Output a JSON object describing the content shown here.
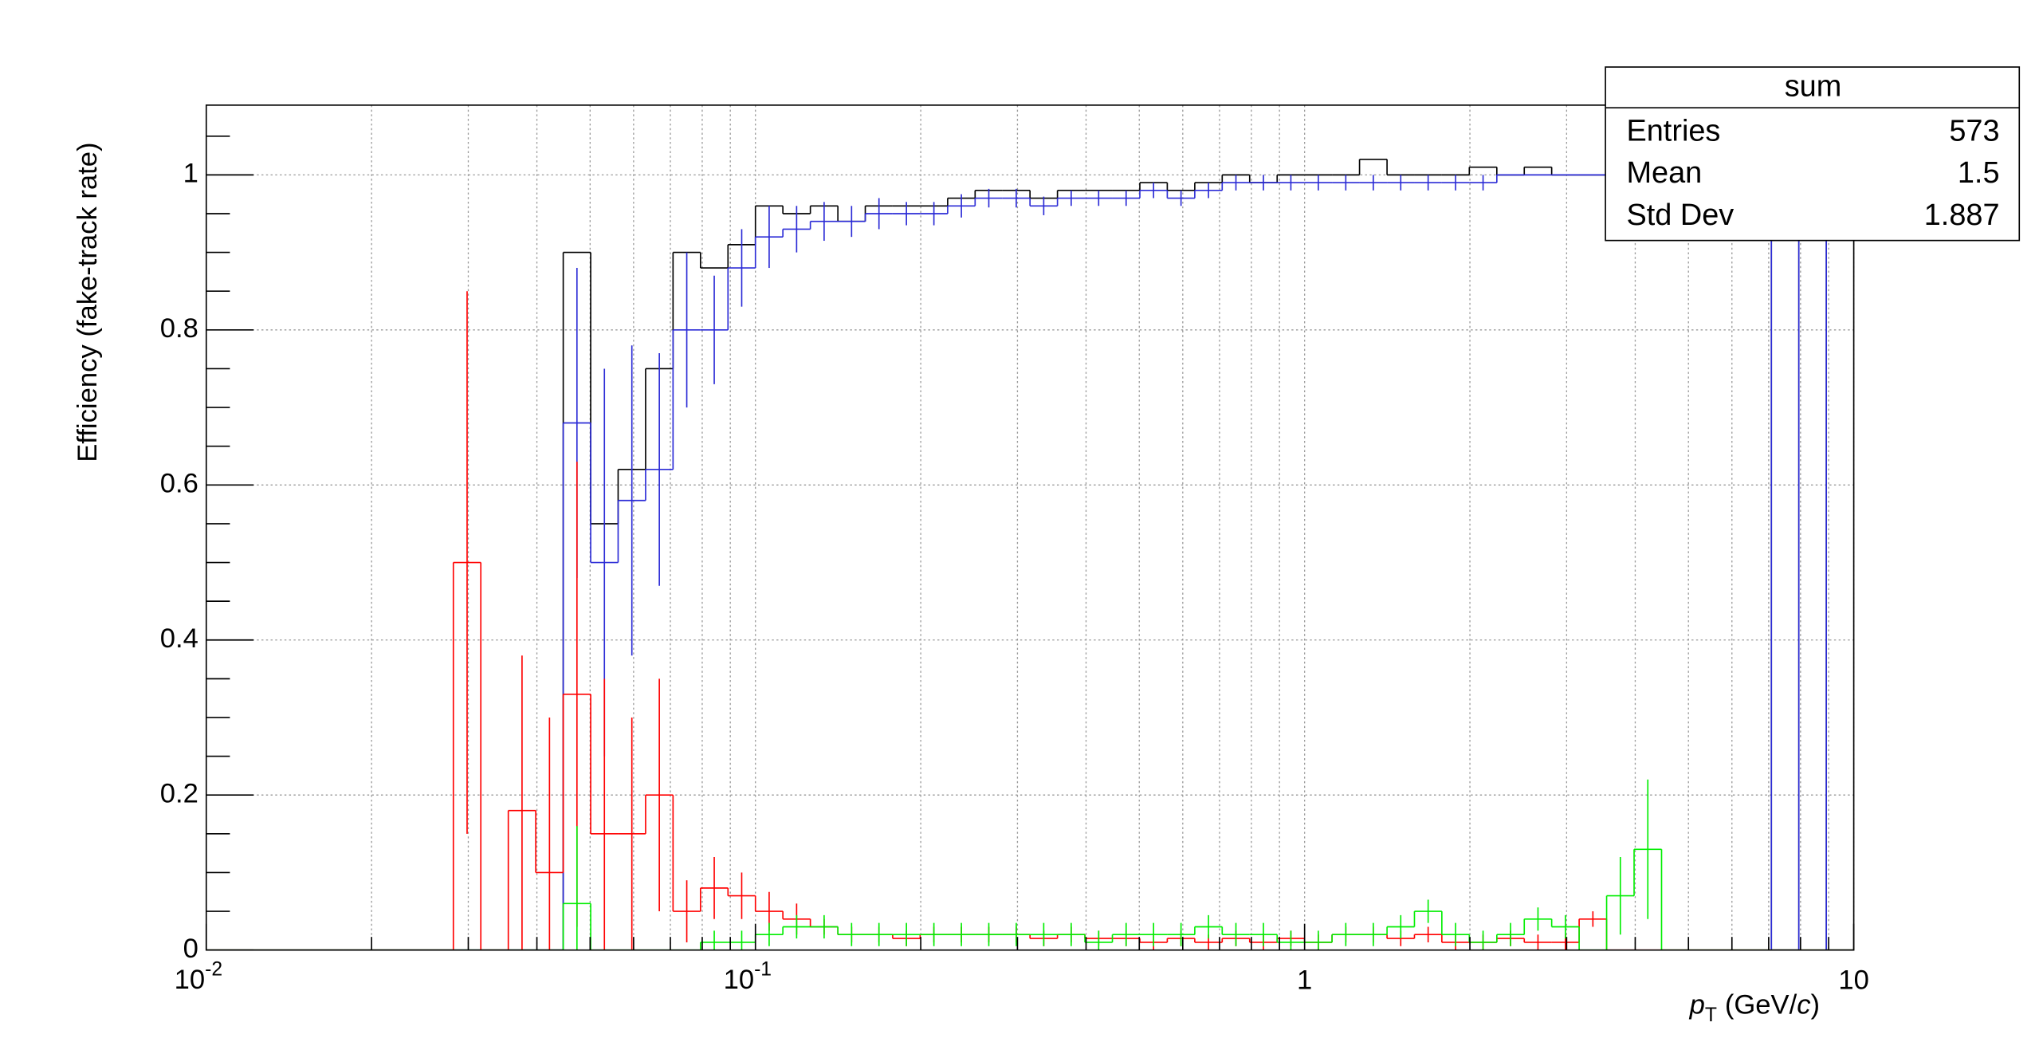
{
  "chart_data": {
    "type": "histogram",
    "ylabel": "Efficiency (fake-track rate)",
    "xlabel": {
      "symbol": "p",
      "sub": "T",
      "unit": "(GeV/",
      "unit_var": "c",
      "close": ")"
    },
    "log_x": true,
    "grid": true,
    "xlim": [
      0.01,
      10
    ],
    "ylim": [
      0,
      1.09
    ],
    "xticks": [
      {
        "value": 0.01,
        "label": "10",
        "sup": "-2"
      },
      {
        "value": 0.1,
        "label": "10",
        "sup": "-1"
      },
      1,
      10
    ],
    "xminorticks": [
      0.02,
      0.03,
      0.04,
      0.05,
      0.06,
      0.07,
      0.08,
      0.09,
      0.2,
      0.3,
      0.4,
      0.5,
      0.6,
      0.7,
      0.8,
      0.9,
      2,
      3,
      4,
      5,
      6,
      7,
      8,
      9
    ],
    "yticks": [
      0,
      0.2,
      0.4,
      0.6,
      0.8,
      1
    ],
    "yminorticks": [
      0.05,
      0.1,
      0.15,
      0.25,
      0.3,
      0.35,
      0.45,
      0.5,
      0.55,
      0.65,
      0.7,
      0.75,
      0.85,
      0.9,
      0.95,
      1.05
    ],
    "bins": [
      0.01,
      0.01122,
      0.01259,
      0.01413,
      0.01585,
      0.01778,
      0.01995,
      0.02239,
      0.02512,
      0.02818,
      0.03162,
      0.03548,
      0.03981,
      0.04467,
      0.05012,
      0.05623,
      0.0631,
      0.07079,
      0.07943,
      0.08913,
      0.1,
      0.1122,
      0.1259,
      0.1413,
      0.1585,
      0.1778,
      0.1995,
      0.2239,
      0.2512,
      0.2818,
      0.3162,
      0.3548,
      0.3981,
      0.4467,
      0.5012,
      0.5623,
      0.631,
      0.7079,
      0.7943,
      0.8913,
      1,
      1.122,
      1.259,
      1.413,
      1.585,
      1.778,
      1.995,
      2.239,
      2.512,
      2.818,
      3.162,
      3.548,
      3.981,
      4.467,
      5.012,
      5.623,
      6.31,
      7.079,
      7.943,
      8.913,
      10
    ],
    "series": [
      {
        "color": "#000000",
        "values": [
          0,
          0,
          0,
          0,
          0,
          0,
          0,
          0,
          0,
          0,
          0,
          0,
          0,
          0.9,
          0.55,
          0.62,
          0.75,
          0.9,
          0.88,
          0.91,
          0.96,
          0.95,
          0.96,
          0.94,
          0.96,
          0.96,
          0.96,
          0.97,
          0.98,
          0.98,
          0.97,
          0.98,
          0.98,
          0.98,
          0.99,
          0.98,
          0.99,
          1,
          0.99,
          1,
          1,
          1,
          1.02,
          1,
          1,
          1,
          1.01,
          1,
          1.01,
          1,
          1,
          1,
          1,
          1,
          1,
          1,
          1,
          0,
          1,
          0
        ]
      },
      {
        "color": "#2b2bd6",
        "values": [
          0,
          0,
          0,
          0,
          0,
          0,
          0,
          0,
          0,
          0,
          0,
          0,
          0,
          0.68,
          0.5,
          0.58,
          0.62,
          0.8,
          0.8,
          0.88,
          0.92,
          0.93,
          0.94,
          0.94,
          0.95,
          0.95,
          0.95,
          0.96,
          0.97,
          0.97,
          0.96,
          0.97,
          0.97,
          0.97,
          0.98,
          0.97,
          0.98,
          0.99,
          0.99,
          0.99,
          0.99,
          0.99,
          0.99,
          0.99,
          0.99,
          0.99,
          0.99,
          1,
          1,
          1,
          1,
          1,
          1,
          1,
          1,
          1,
          1,
          0,
          1,
          0
        ],
        "errors": [
          0,
          0,
          0,
          0,
          0,
          0,
          0,
          0,
          0,
          0,
          0,
          0,
          0,
          0.2,
          0.25,
          0.2,
          0.15,
          0.1,
          0.07,
          0.05,
          0.04,
          0.03,
          0.025,
          0.02,
          0.02,
          0.015,
          0.015,
          0.015,
          0.012,
          0.012,
          0.012,
          0.01,
          0.01,
          0.01,
          0.01,
          0.01,
          0.01,
          0.01,
          0.01,
          0.01,
          0.01,
          0.01,
          0.01,
          0.01,
          0.01,
          0.01,
          0.01,
          0,
          0,
          0,
          0,
          0,
          0,
          0,
          0,
          0,
          0,
          0,
          0,
          0
        ]
      },
      {
        "color": "#ff0000",
        "values": [
          0,
          0,
          0,
          0,
          0,
          0,
          0,
          0,
          0,
          0.5,
          0,
          0.18,
          0.1,
          0.33,
          0.15,
          0.15,
          0.2,
          0.05,
          0.08,
          0.07,
          0.05,
          0.04,
          0.03,
          0.02,
          0.02,
          0.015,
          0.02,
          0.02,
          0.02,
          0.02,
          0.015,
          0.02,
          0.015,
          0.015,
          0.01,
          0.015,
          0.01,
          0.015,
          0.01,
          0.015,
          0.01,
          0.02,
          0.02,
          0.015,
          0.02,
          0.01,
          0.01,
          0.015,
          0.01,
          0.01,
          0.04,
          0,
          0,
          0,
          0,
          0,
          0,
          0,
          0,
          0
        ],
        "errors": [
          0,
          0,
          0,
          0,
          0,
          0,
          0,
          0,
          0,
          0.35,
          0,
          0.2,
          0.2,
          0.3,
          0.2,
          0.15,
          0.15,
          0.04,
          0.04,
          0.03,
          0.025,
          0.02,
          0.01,
          0.01,
          0.01,
          0.01,
          0.01,
          0.01,
          0.01,
          0.01,
          0.01,
          0.01,
          0.01,
          0.01,
          0.01,
          0.01,
          0.01,
          0.01,
          0.01,
          0.01,
          0.01,
          0.01,
          0.01,
          0.01,
          0.01,
          0.01,
          0.01,
          0.01,
          0.01,
          0.01,
          0.01,
          0,
          0,
          0,
          0,
          0,
          0,
          0,
          0,
          0
        ]
      },
      {
        "color": "#00ee00",
        "values": [
          0,
          0,
          0,
          0,
          0,
          0,
          0,
          0,
          0,
          0,
          0,
          0,
          0,
          0.06,
          0,
          0,
          0,
          0,
          0.01,
          0.01,
          0.02,
          0.03,
          0.03,
          0.02,
          0.02,
          0.02,
          0.02,
          0.02,
          0.02,
          0.02,
          0.02,
          0.02,
          0.01,
          0.02,
          0.02,
          0.02,
          0.03,
          0.02,
          0.02,
          0.01,
          0.01,
          0.02,
          0.02,
          0.03,
          0.05,
          0.02,
          0.01,
          0.02,
          0.04,
          0.03,
          0,
          0.07,
          0.13,
          0,
          0,
          0,
          0,
          0,
          0,
          0
        ],
        "errors": [
          0,
          0,
          0,
          0,
          0,
          0,
          0,
          0,
          0,
          0,
          0,
          0,
          0,
          0.1,
          0,
          0,
          0,
          0,
          0.015,
          0.015,
          0.015,
          0.015,
          0.015,
          0.015,
          0.015,
          0.015,
          0.015,
          0.015,
          0.015,
          0.015,
          0.015,
          0.015,
          0.015,
          0.015,
          0.015,
          0.015,
          0.015,
          0.015,
          0.015,
          0.015,
          0.015,
          0.015,
          0.015,
          0.015,
          0.015,
          0.015,
          0.015,
          0.015,
          0.015,
          0.015,
          0,
          0.05,
          0.09,
          0,
          0,
          0,
          0,
          0,
          0,
          0
        ]
      }
    ],
    "stats": {
      "title": "sum",
      "rows": [
        {
          "label": "Entries",
          "value": 573
        },
        {
          "label": "Mean",
          "value": 1.5
        },
        {
          "label": "Std Dev",
          "value": 1.887
        }
      ]
    }
  }
}
